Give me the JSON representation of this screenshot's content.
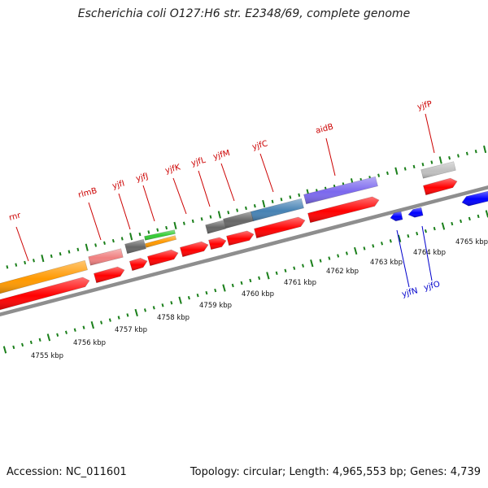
{
  "title": "Escherichia coli O127:H6 str. E2348/69, complete genome",
  "footer": {
    "accession": "Accession: NC_011601",
    "summary": "Topology: circular; Length: 4,965,553 bp; Genes: 4,739"
  },
  "colors": {
    "backbone": "#8e8e8e",
    "cds": "#ff0000",
    "reverse_cds": "#0000ff",
    "ticks": "#1a7f1a",
    "forward_label": "#cc0000",
    "reverse_label": "#0000cc"
  },
  "scale": {
    "unit": "kbp",
    "labels": [
      "4755 kbp",
      "4756 kbp",
      "4757 kbp",
      "4758 kbp",
      "4759 kbp",
      "4760 kbp",
      "4761 kbp",
      "4762 kbp",
      "4763 kbp",
      "4764 kbp",
      "4765 kbp"
    ]
  },
  "genes": [
    {
      "name": "rnr",
      "color": "#ff9900"
    },
    {
      "name": "rlmB",
      "color": "#f08080"
    },
    {
      "name": "yjfI",
      "color": "#666666"
    },
    {
      "name": "yjfJ",
      "color": "#33cc33"
    },
    {
      "name": "yjfK",
      "color": "#ff0000"
    },
    {
      "name": "yjfL",
      "color": "#ff0000"
    },
    {
      "name": "yjfM",
      "color": "#666666"
    },
    {
      "name": "yjfC",
      "color": "#4682b4"
    },
    {
      "name": "aidB",
      "color": "#7b68ee"
    },
    {
      "name": "yjfP",
      "color": "#c0c0c0"
    },
    {
      "name": "yjfN",
      "color": "#0000ff"
    },
    {
      "name": "yjfO",
      "color": "#0000ff"
    }
  ]
}
